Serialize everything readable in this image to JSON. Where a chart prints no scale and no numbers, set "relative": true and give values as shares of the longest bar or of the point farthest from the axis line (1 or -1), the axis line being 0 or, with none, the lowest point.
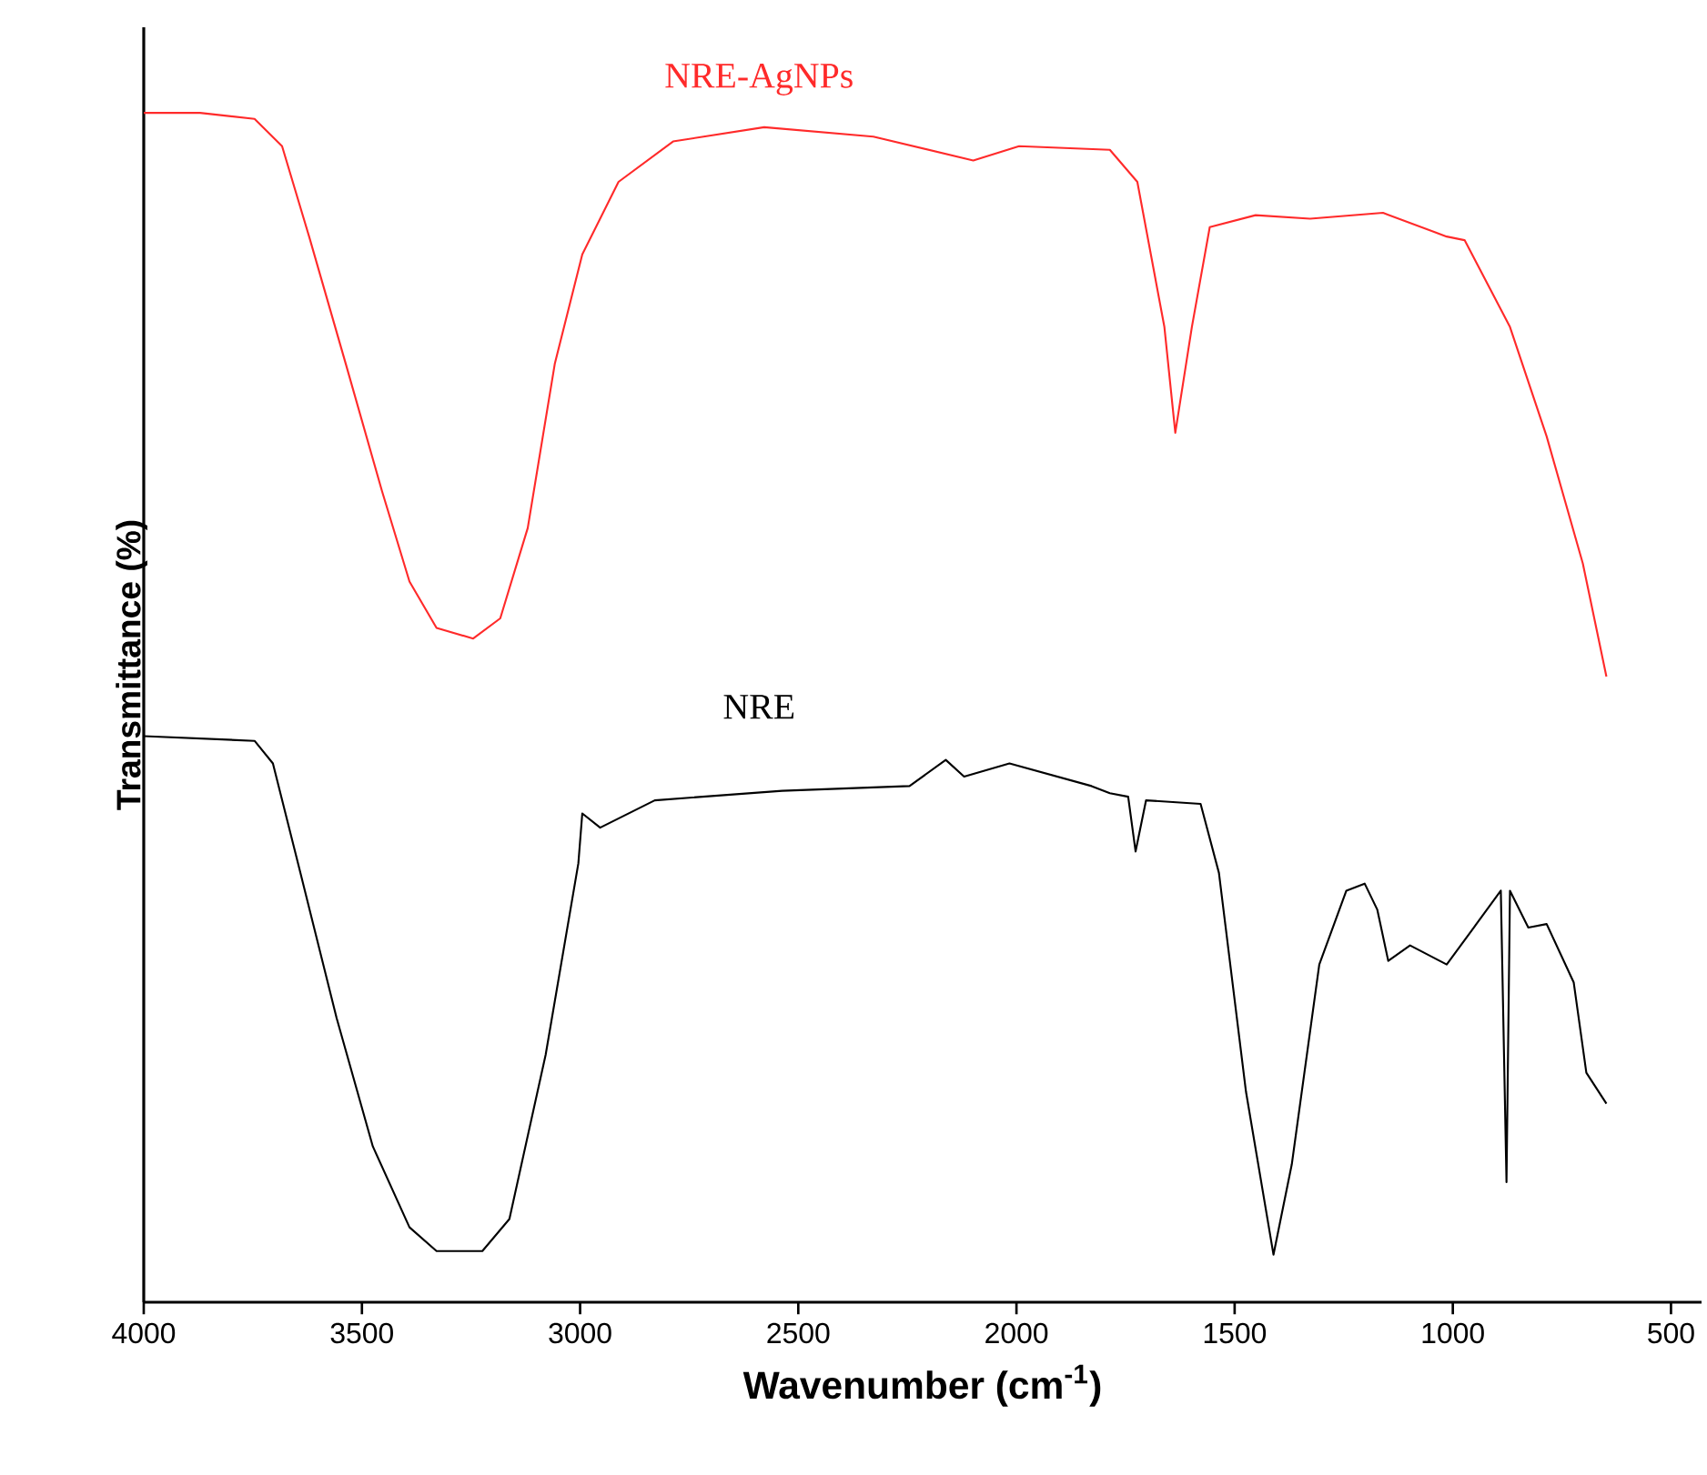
{
  "chart_data": {
    "type": "line",
    "xlabel": "Wavenumber (cm$^{-1}$)",
    "ylabel": "Transmittance (%)",
    "relative": true,
    "xlim": [
      4000,
      430
    ],
    "xticks": [
      4000,
      3500,
      3000,
      2500,
      2000,
      1500,
      1000,
      500
    ],
    "series": [
      {
        "name": "NRE-AgNPs",
        "color": "#ff2a2a",
        "x": [
          4000,
          3871,
          3746,
          3683,
          3621,
          3537,
          3454,
          3391,
          3329,
          3245,
          3183,
          3120,
          3058,
          2995,
          2912,
          2787,
          2578,
          2328,
          2099,
          1994,
          1786,
          1723,
          1661,
          1636,
          1598,
          1557,
          1452,
          1327,
          1160,
          1014,
          973,
          869,
          785,
          702,
          648
        ],
        "values": [
          1.0,
          1.0,
          0.995,
          0.972,
          0.896,
          0.789,
          0.682,
          0.606,
          0.567,
          0.558,
          0.575,
          0.651,
          0.789,
          0.881,
          0.942,
          0.976,
          0.988,
          0.98,
          0.96,
          0.972,
          0.969,
          0.942,
          0.82,
          0.731,
          0.82,
          0.904,
          0.914,
          0.911,
          0.916,
          0.896,
          0.893,
          0.82,
          0.728,
          0.621,
          0.526
        ]
      },
      {
        "name": "NRE",
        "color": "#000000",
        "x": [
          4000,
          3746,
          3704,
          3641,
          3558,
          3475,
          3391,
          3329,
          3224,
          3162,
          3079,
          3004,
          2995,
          2954,
          2829,
          2537,
          2245,
          2162,
          2120,
          2016,
          1828,
          1786,
          1744,
          1727,
          1703,
          1578,
          1536,
          1474,
          1411,
          1369,
          1306,
          1244,
          1202,
          1173,
          1148,
          1098,
          1014,
          952,
          890,
          877,
          869,
          827,
          785,
          723,
          694,
          648
        ],
        "values": [
          0.476,
          0.472,
          0.453,
          0.361,
          0.239,
          0.131,
          0.063,
          0.043,
          0.043,
          0.07,
          0.208,
          0.369,
          0.411,
          0.399,
          0.422,
          0.43,
          0.434,
          0.456,
          0.442,
          0.453,
          0.434,
          0.428,
          0.425,
          0.379,
          0.422,
          0.419,
          0.361,
          0.177,
          0.04,
          0.116,
          0.284,
          0.346,
          0.352,
          0.33,
          0.287,
          0.3,
          0.284,
          0.315,
          0.346,
          0.101,
          0.346,
          0.315,
          0.318,
          0.269,
          0.193,
          0.167
        ]
      }
    ]
  }
}
